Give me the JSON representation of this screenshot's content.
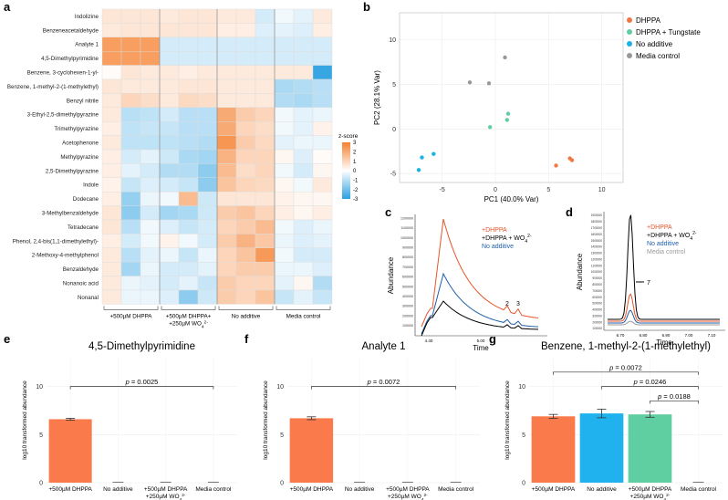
{
  "chart_data": [
    {
      "panel": "a",
      "type": "heatmap",
      "rows": [
        "Indolizine",
        "Benzeneacetaldehyde",
        "Analyte 1",
        "4,5-Dimethylpyrimidine",
        "Benzene, 3-cyclohexen-1-yl-",
        "Benzene, 1-methyl-2-(1-methylethyl)",
        "Benzyl nitrile",
        "3-Ethyl-2,5-dimethylpyrazine",
        "Trimethylpyrazine",
        "Acetophenone",
        "Methylpyrazine",
        "2,5-Dimethylpyrazine",
        "Indole",
        "Dodecane",
        "3-Methylbenzaldehyde",
        "Tetradecane",
        "Phenol, 2,4-bis(1,1-dimethylethyl)-",
        "2-Methoxy-4-methylphenol",
        "Benzaldehyde",
        "Nonanoic acid",
        "Nonanal"
      ],
      "groups": [
        "+500µM DHPPA",
        "+500µM DHPPA+",
        "No additive",
        "Media control"
      ],
      "group2_line2_prefix": "+250µM WO",
      "group2_sub": "4",
      "group2_sup": "2-",
      "legend_title": "z-score",
      "legend_ticks": [
        "3",
        "2",
        "1",
        "0",
        "-1",
        "-2",
        "-3"
      ],
      "values": [
        [
          0.6,
          0.6,
          0.6,
          0.5,
          0.6,
          0.6,
          0.5,
          0.5,
          -0.6,
          -0.2,
          -0.4,
          0.5
        ],
        [
          0.5,
          0.6,
          0.6,
          0.6,
          0.6,
          0.6,
          0.4,
          0.4,
          -0.5,
          -0.4,
          -0.5,
          0.4
        ],
        [
          2.3,
          2.3,
          2.3,
          -0.6,
          -0.6,
          -0.6,
          -0.6,
          -0.6,
          -0.6,
          -0.6,
          -0.6,
          -0.6
        ],
        [
          2.3,
          2.3,
          2.3,
          -0.6,
          -0.6,
          -0.6,
          -0.6,
          -0.6,
          -0.6,
          -0.6,
          -0.6,
          -0.6
        ],
        [
          0.1,
          0.6,
          0.5,
          0.5,
          0.4,
          0.5,
          0.5,
          0.5,
          0.5,
          0.5,
          0.5,
          -2.8
        ],
        [
          0.6,
          0.5,
          0.5,
          0.5,
          0.6,
          0.6,
          0.5,
          0.5,
          0.5,
          -1.2,
          -1.1,
          -1.0
        ],
        [
          0.5,
          1.0,
          0.8,
          0.5,
          0.9,
          0.8,
          0.5,
          0.5,
          0.5,
          -1.1,
          -1.2,
          -1.0
        ],
        [
          0.5,
          -1.0,
          -0.9,
          -0.6,
          -1.0,
          -1.0,
          2.0,
          1.2,
          1.0,
          -0.2,
          -0.4,
          -0.3
        ],
        [
          0.4,
          -0.9,
          -0.8,
          -0.8,
          -1.0,
          -1.0,
          2.0,
          1.0,
          0.8,
          -0.2,
          -0.4,
          0.3
        ],
        [
          0.5,
          -0.9,
          -0.9,
          -0.9,
          -1.0,
          -1.1,
          2.5,
          1.2,
          0.9,
          -0.4,
          -0.3,
          -0.3
        ],
        [
          0.4,
          -0.6,
          -0.4,
          -0.7,
          -1.2,
          -1.3,
          1.8,
          1.0,
          1.0,
          0.2,
          -0.5,
          0.1
        ],
        [
          0.4,
          -0.4,
          -0.6,
          -1.1,
          -1.1,
          -1.6,
          1.6,
          0.8,
          1.0,
          -0.2,
          -0.6,
          0.2
        ],
        [
          0.3,
          -0.8,
          -0.5,
          -0.6,
          -0.8,
          -1.6,
          1.4,
          1.0,
          0.9,
          0.2,
          -0.2,
          0.5
        ],
        [
          0.4,
          -1.5,
          -0.3,
          -0.2,
          1.6,
          -0.7,
          0.6,
          0.6,
          0.6,
          0.3,
          0.2,
          0.2
        ],
        [
          0.6,
          -1.6,
          -0.6,
          -1.3,
          -1.2,
          -0.7,
          1.2,
          1.4,
          1.0,
          0.4,
          0.2,
          0.4
        ],
        [
          0.6,
          -1.0,
          -0.2,
          -0.5,
          -0.8,
          -0.6,
          1.0,
          1.2,
          1.6,
          -0.2,
          -0.5,
          -0.3
        ],
        [
          0.4,
          -0.6,
          -0.2,
          0.3,
          -0.2,
          -0.6,
          1.2,
          1.8,
          1.3,
          -0.3,
          -0.5,
          -0.4
        ],
        [
          0.5,
          -1.0,
          -0.4,
          -0.3,
          -0.8,
          -0.3,
          1.0,
          1.4,
          2.4,
          -0.2,
          -0.6,
          -0.6
        ],
        [
          0.5,
          -1.3,
          -0.3,
          -0.6,
          -0.6,
          -0.4,
          1.0,
          1.2,
          1.2,
          -0.3,
          -0.3,
          -0.5
        ],
        [
          0.5,
          -0.3,
          -0.4,
          -0.6,
          -0.4,
          -0.8,
          1.2,
          1.0,
          1.0,
          -0.4,
          0.2,
          -1.1
        ],
        [
          0.5,
          -0.3,
          -0.3,
          -0.5,
          -1.6,
          -0.7,
          1.2,
          1.0,
          1.4,
          -0.8,
          -0.4,
          -0.8
        ]
      ]
    },
    {
      "panel": "b",
      "type": "scatter",
      "xlabel": "PC1 (40.0% Var)",
      "ylabel": "PC2 (28.1% Var)",
      "xlim": [
        -9,
        12
      ],
      "ylim": [
        -6,
        13
      ],
      "xticks": [
        -5,
        0,
        5,
        10
      ],
      "yticks": [
        -5,
        0,
        5,
        10
      ],
      "series": [
        {
          "name": "DHPPA",
          "color": "#f47742",
          "points": [
            [
              5.7,
              -4.1
            ],
            [
              7.0,
              -3.3
            ],
            [
              7.2,
              -3.5
            ]
          ]
        },
        {
          "name": "DHPPA + Tungstate",
          "color": "#5fcea0",
          "points": [
            [
              -0.5,
              0.2
            ],
            [
              1.1,
              1.0
            ],
            [
              1.2,
              1.7
            ]
          ]
        },
        {
          "name": "No additive",
          "color": "#19b3e6",
          "points": [
            [
              -7.2,
              -4.6
            ],
            [
              -6.9,
              -3.2
            ],
            [
              -5.8,
              -2.8
            ]
          ]
        },
        {
          "name": "Media control",
          "color": "#999999",
          "points": [
            [
              -2.4,
              5.2
            ],
            [
              -0.6,
              5.1
            ],
            [
              0.9,
              8.0
            ]
          ]
        }
      ]
    },
    {
      "panel": "c",
      "type": "line",
      "ylabel": "Abundance",
      "xlabel": "Time",
      "x_tick_labels": [
        "4.40",
        "5.00"
      ],
      "y_tick_labels": [
        "1200000",
        "1100000",
        "1000000",
        "900000",
        "800000",
        "700000",
        "600000",
        "500000",
        "400000",
        "300000",
        "200000",
        "100000"
      ],
      "peak_labels": [
        "2",
        "3"
      ],
      "legend": [
        {
          "label": "+DHPPA",
          "color": "#e8552a"
        },
        {
          "label": "+DHPPA + WO",
          "color": "#000000",
          "sub": "4",
          "sup": "2-"
        },
        {
          "label": "No additive",
          "color": "#1f5fa6"
        }
      ]
    },
    {
      "panel": "d",
      "type": "line",
      "ylabel": "Abundance",
      "xlabel": "Time",
      "x_tick_labels": [
        "6.70",
        "6.80",
        "6.90",
        "7.00",
        "7.10"
      ],
      "y_tick_labels": [
        "1900000",
        "1800000",
        "1700000",
        "1600000",
        "1500000",
        "1400000",
        "1300000",
        "1200000",
        "1100000",
        "1000000",
        "900000",
        "800000",
        "700000",
        "600000",
        "500000",
        "400000",
        "300000",
        "200000",
        "100000"
      ],
      "peak_labels": [
        "7"
      ],
      "legend": [
        {
          "label": "+DHPPA",
          "color": "#e8552a"
        },
        {
          "label": "+DHPPA + WO",
          "color": "#000000",
          "sub": "4",
          "sup": "2-"
        },
        {
          "label": "No additive",
          "color": "#1f5fa6"
        },
        {
          "label": "Media control",
          "color": "#999999"
        }
      ]
    },
    {
      "panel": "e",
      "type": "bar",
      "title": "4,5-Dimethylpyrimidine",
      "ylabel": "log10 transformed abundance",
      "ylim": [
        0,
        13
      ],
      "yticks": [
        0,
        5,
        10
      ],
      "categories": [
        "+500µM DHPPA",
        "No additive",
        "+500µM DHPPA",
        "Media control"
      ],
      "category3_line2": "+250µM WO",
      "values": [
        6.6,
        0,
        0,
        0
      ],
      "errors": [
        0.1,
        0,
        0,
        0
      ],
      "colors": [
        "#fb7a4b",
        "#555555",
        "#555555",
        "#555555"
      ],
      "significance": [
        {
          "label": "p = 0.0025",
          "from": 0,
          "to": 3,
          "y": 10
        }
      ]
    },
    {
      "panel": "f",
      "type": "bar",
      "title": "Analyte 1",
      "ylabel": "log10 transformed abundance",
      "ylim": [
        0,
        13
      ],
      "yticks": [
        0,
        5,
        10
      ],
      "categories": [
        "+500µM DHPPA",
        "No additive",
        "+500µM DHPPA",
        "Media control"
      ],
      "category3_line2": "+250µM WO",
      "values": [
        6.7,
        0,
        0,
        0
      ],
      "errors": [
        0.15,
        0,
        0,
        0
      ],
      "colors": [
        "#fb7a4b",
        "#555555",
        "#555555",
        "#555555"
      ],
      "significance": [
        {
          "label": "p = 0.0072",
          "from": 0,
          "to": 3,
          "y": 10
        }
      ]
    },
    {
      "panel": "g",
      "type": "bar",
      "title": "Benzene, 1-methyl-2-(1-methylethyl)",
      "ylabel": "log10 transformed abundance",
      "ylim": [
        0,
        13
      ],
      "yticks": [
        0,
        5,
        10
      ],
      "categories": [
        "+500µM DHPPA",
        "No additive",
        "+500µM DHPPA",
        "Media control"
      ],
      "category3_line2": "+250µM WO",
      "values": [
        6.9,
        7.2,
        7.1,
        0
      ],
      "errors": [
        0.2,
        0.45,
        0.3,
        0
      ],
      "colors": [
        "#fb7a4b",
        "#1fb2ee",
        "#5fcea0",
        "#555555"
      ],
      "significance": [
        {
          "label": "p = 0.0072",
          "from": 0,
          "to": 3,
          "y": 11.5
        },
        {
          "label": "p = 0.0246",
          "from": 1,
          "to": 3,
          "y": 10.0
        },
        {
          "label": "p = 0.0188",
          "from": 2,
          "to": 3,
          "y": 8.5
        }
      ]
    }
  ]
}
